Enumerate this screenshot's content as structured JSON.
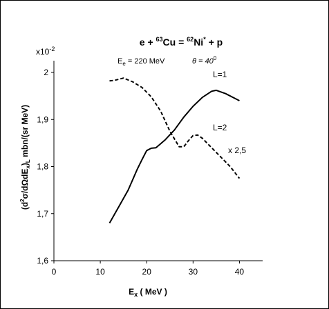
{
  "chart_data": {
    "type": "line",
    "title": {
      "parts": [
        {
          "text": "e + "
        },
        {
          "text": "63",
          "sup": true
        },
        {
          "text": "Cu = "
        },
        {
          "text": "62",
          "sup": true
        },
        {
          "text": "Ni"
        },
        {
          "text": "*",
          "sup": true
        },
        {
          "text": " + p"
        }
      ]
    },
    "subtitle": {
      "energy": {
        "symbol": "E",
        "sub": "e",
        "text": " = 220 MeV"
      },
      "angle": {
        "text": "θ = 40",
        "sup": "0"
      }
    },
    "xlabel": {
      "main": "E",
      "sub": "x",
      "rest": " ( MeV )"
    },
    "ylabel": {
      "parts": [
        {
          "text": "(d"
        },
        {
          "text": "2",
          "sup": true
        },
        {
          "text": "σ"
        },
        {
          "text": "/d",
          "sup": false
        },
        {
          "text": "Ω"
        },
        {
          "text": "dE"
        },
        {
          "text": "x",
          "sub": true
        },
        {
          "text": ")"
        },
        {
          "text": "L",
          "sub": true
        },
        {
          "text": "  mbn/(sr MeV)"
        }
      ]
    },
    "y_multiplier": {
      "base": "x10",
      "exp": "-2"
    },
    "xlim": [
      0,
      45
    ],
    "ylim": [
      1.6,
      2.05
    ],
    "x_ticks": [
      0,
      10,
      20,
      30,
      40
    ],
    "x_tick_labels": [
      "0",
      "10",
      "20",
      "30",
      "40"
    ],
    "y_ticks": [
      1.6,
      1.7,
      1.8,
      1.9,
      2.0
    ],
    "y_tick_labels": [
      "1,6",
      "1,7",
      "1,8",
      "1,9",
      "2"
    ],
    "grid": false,
    "series": [
      {
        "name": "L=1",
        "style": "solid",
        "x": [
          12,
          14,
          16,
          18,
          19,
          20,
          21,
          22,
          24,
          26,
          28,
          30,
          32,
          34,
          35,
          37,
          40
        ],
        "y": [
          1.68,
          1.715,
          1.75,
          1.795,
          1.815,
          1.834,
          1.839,
          1.84,
          1.857,
          1.878,
          1.905,
          1.928,
          1.947,
          1.96,
          1.962,
          1.955,
          1.94
        ]
      },
      {
        "name": "L=2",
        "style": "dashed",
        "scale_note": "x 2,5",
        "x": [
          12,
          13,
          15,
          17,
          19,
          21,
          23,
          25,
          27,
          28,
          29,
          30,
          31,
          32,
          34,
          36,
          38,
          40
        ],
        "y": [
          1.982,
          1.983,
          1.988,
          1.98,
          1.968,
          1.948,
          1.918,
          1.875,
          1.842,
          1.842,
          1.855,
          1.866,
          1.867,
          1.86,
          1.84,
          1.82,
          1.8,
          1.775
        ]
      }
    ]
  }
}
